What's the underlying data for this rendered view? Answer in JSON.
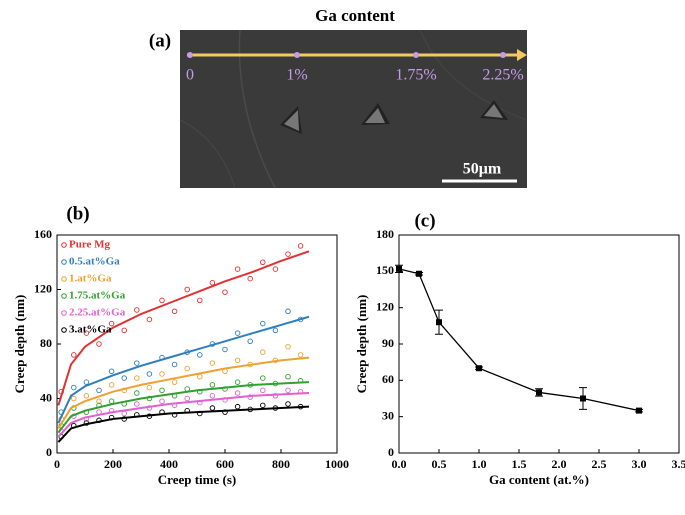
{
  "panel_a": {
    "title": "Ga content",
    "label": "(a)",
    "marks": [
      "0",
      "1%",
      "1.75%",
      "2.25%"
    ],
    "scale_bar": "50μm"
  },
  "chart_data": [
    {
      "type": "scatter",
      "label": "(b)",
      "x_label": "Creep time (s)",
      "y_label": "Creep depth (nm)",
      "xlim": [
        0,
        1000
      ],
      "xticks": [
        0,
        200,
        400,
        600,
        800,
        1000
      ],
      "ylim": [
        0,
        160
      ],
      "yticks": [
        0,
        40,
        80,
        120,
        160
      ],
      "legend": "upper-left",
      "x": [
        15,
        60,
        105,
        150,
        195,
        240,
        285,
        330,
        375,
        420,
        465,
        510,
        555,
        600,
        645,
        690,
        735,
        780,
        825,
        870
      ],
      "fit_x": [
        5,
        50,
        100,
        200,
        300,
        400,
        500,
        600,
        700,
        800,
        900
      ],
      "series": [
        {
          "name": "Pure Mg",
          "color": "#e03232",
          "values": [
            45,
            72,
            88,
            80,
            95,
            90,
            105,
            98,
            112,
            104,
            120,
            112,
            125,
            118,
            135,
            128,
            140,
            135,
            146,
            152
          ],
          "fit": [
            35,
            65,
            78,
            92,
            102,
            110,
            118,
            126,
            133,
            141,
            148
          ]
        },
        {
          "name": "0.5.at%Ga",
          "color": "#2e7fbf",
          "values": [
            30,
            48,
            52,
            46,
            60,
            55,
            66,
            58,
            70,
            65,
            74,
            72,
            80,
            76,
            88,
            82,
            95,
            90,
            104,
            98
          ],
          "fit": [
            22,
            42,
            49,
            57,
            64,
            70,
            76,
            82,
            88,
            94,
            100
          ]
        },
        {
          "name": "1.at%Ga",
          "color": "#f0a030",
          "values": [
            25,
            40,
            42,
            38,
            50,
            46,
            55,
            48,
            58,
            52,
            62,
            56,
            66,
            60,
            68,
            65,
            74,
            68,
            78,
            72
          ],
          "fit": [
            18,
            33,
            38,
            45,
            50,
            54,
            58,
            62,
            65,
            68,
            70
          ]
        },
        {
          "name": "1.75.at%Ga",
          "color": "#30a030",
          "values": [
            20,
            33,
            30,
            35,
            38,
            36,
            44,
            40,
            46,
            42,
            47,
            45,
            50,
            47,
            52,
            50,
            55,
            51,
            56,
            53
          ],
          "fit": [
            15,
            27,
            31,
            36,
            40,
            43,
            46,
            48,
            50,
            51,
            52
          ]
        },
        {
          "name": "2.25.at%Ga",
          "color": "#e060d0",
          "values": [
            16,
            27,
            25,
            30,
            31,
            29,
            36,
            33,
            38,
            35,
            40,
            37,
            42,
            39,
            44,
            41,
            46,
            42,
            46,
            45
          ],
          "fit": [
            12,
            22,
            26,
            30,
            33,
            36,
            38,
            40,
            42,
            43,
            44
          ]
        },
        {
          "name": "3.at%Ga",
          "color": "#000000",
          "values": [
            12,
            20,
            22,
            24,
            26,
            25,
            28,
            27,
            30,
            28,
            31,
            29,
            33,
            30,
            34,
            32,
            35,
            33,
            36,
            34
          ],
          "fit": [
            8,
            18,
            21,
            25,
            27,
            29,
            30,
            31,
            32,
            33,
            34
          ]
        }
      ]
    },
    {
      "type": "line",
      "label": "(c)",
      "x_label": "Ga content (at.%)",
      "y_label": "Creep depth (nm)",
      "xlim": [
        0,
        3.5
      ],
      "xticks": [
        {
          "value": 0,
          "label": "0.0"
        },
        {
          "value": 0.5,
          "label": "0.5"
        },
        {
          "value": 1,
          "label": "1.0"
        },
        {
          "value": 1.5,
          "label": "1.5"
        },
        {
          "value": 2,
          "label": "2.0"
        },
        {
          "value": 2.5,
          "label": "2.5"
        },
        {
          "value": 3,
          "label": "3.0"
        },
        {
          "value": 3.5,
          "label": "3.5"
        }
      ],
      "ylim": [
        0,
        180
      ],
      "yticks": [
        0,
        30,
        60,
        90,
        120,
        150,
        180
      ],
      "color": "#000000",
      "x": [
        0,
        0.25,
        0.5,
        1,
        1.75,
        2.3,
        3
      ],
      "values": [
        152,
        148,
        108,
        70,
        50,
        45,
        35
      ],
      "errors": [
        3,
        1,
        10,
        1,
        3,
        9,
        1
      ]
    }
  ]
}
